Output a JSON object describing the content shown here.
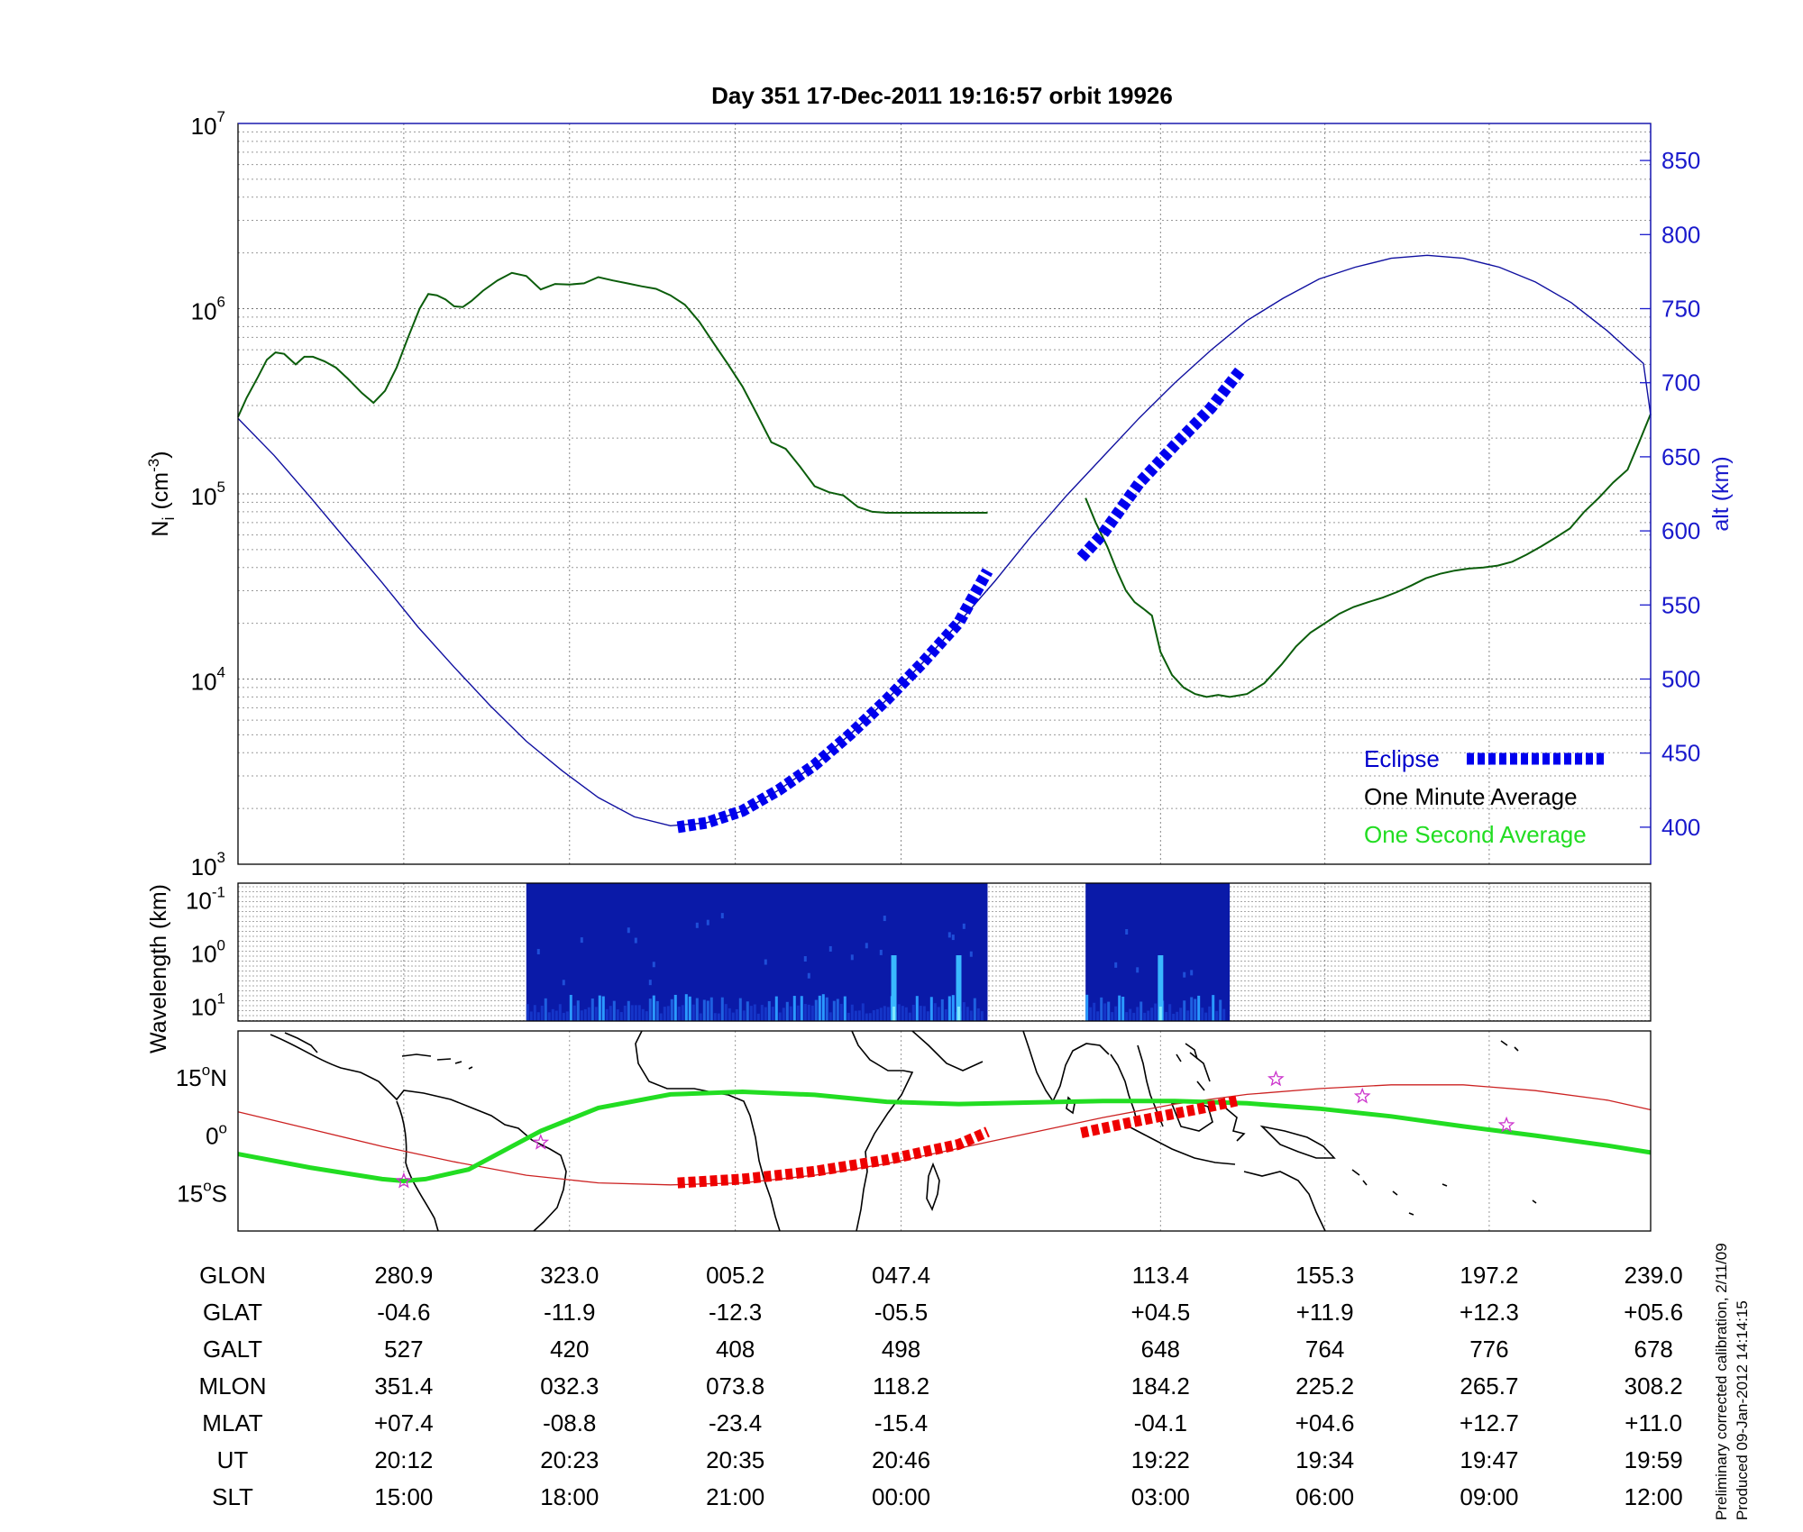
{
  "title": "Day 351  17-Dec-2011 19:16:57   orbit 19926",
  "footnote": {
    "line1": "Preliminary corrected calibration, 2/11/09",
    "line2": "Produced 09-Jan-2012 14:14:15"
  },
  "colors": {
    "density": "#0b5d0b",
    "altitude": "#1010a0",
    "eclipse": "#0000ee",
    "track": "#22dd22",
    "magnetic_equator": "#cc2222",
    "eclipse_map": "#ee0000",
    "legend_eclipse": "#0000cc",
    "legend_one_second": "#22dd22",
    "star": "#cc33cc"
  },
  "chart_data": [
    {
      "type": "line",
      "ylabel": "N",
      "ylabel_sub": "i",
      "ylabel_unit": "(cm",
      "ylabel_exp": "-3",
      "ylabel_close": ")",
      "yscale": "log",
      "ylim": [
        1000,
        10000000
      ],
      "yticks": [
        {
          "base": "10",
          "exp": "3",
          "value": 1000
        },
        {
          "base": "10",
          "exp": "4",
          "value": 10000
        },
        {
          "base": "10",
          "exp": "5",
          "value": 100000
        },
        {
          "base": "10",
          "exp": "6",
          "value": 1000000
        },
        {
          "base": "10",
          "exp": "7",
          "value": 10000000
        }
      ],
      "y2label": "alt (km)",
      "y2lim": [
        375,
        875
      ],
      "y2ticks": [
        "400",
        "450",
        "500",
        "550",
        "600",
        "650",
        "700",
        "750",
        "800",
        "850"
      ],
      "x_frame": "orbit time, minutes from 19:16:57 (approx.)",
      "xlim": [
        0,
        98
      ],
      "grid": true,
      "legend": {
        "position": "bottom-right",
        "eclipse": "Eclipse",
        "one_minute": "One Minute Average",
        "one_second": "One Second Average"
      },
      "series": [
        {
          "name": "One Minute Average",
          "axis": "left",
          "segments": [
            {
              "x": [
                0.0,
                0.6,
                1.4,
                2.0,
                2.6,
                3.2,
                4.0,
                4.6,
                5.2,
                6.0,
                6.8,
                7.6,
                8.6,
                9.4,
                10.2,
                11.0,
                11.8,
                12.6,
                13.2,
                13.8,
                14.4,
                15.0,
                15.6,
                16.2,
                17.0,
                18.0,
                19.0,
                20.0,
                21.0,
                22.0,
                23.0,
                24.0,
                25.0,
                26.0,
                27.0,
                28.0,
                29.0,
                30.0,
                31.0,
                32.0,
                33.0,
                34.0,
                35.0,
                36.0,
                37.0,
                38.0,
                39.0,
                40.0,
                41.0,
                42.0,
                43.0,
                44.0,
                45.0,
                46.0,
                47.0,
                48.0,
                49.0,
                50.0,
                51.0,
                52.0
              ],
              "y": [
                260000,
                330000,
                430000,
                530000,
                580000,
                570000,
                500000,
                550000,
                550000,
                520000,
                480000,
                420000,
                350000,
                310000,
                360000,
                480000,
                700000,
                1000000,
                1200000,
                1180000,
                1120000,
                1030000,
                1020000,
                1100000,
                1250000,
                1420000,
                1560000,
                1500000,
                1270000,
                1360000,
                1350000,
                1370000,
                1480000,
                1420000,
                1370000,
                1320000,
                1280000,
                1180000,
                1050000,
                850000,
                650000,
                500000,
                380000,
                270000,
                190000,
                175000,
                140000,
                110000,
                102000,
                98000,
                85000,
                80000,
                79000,
                79000,
                79000,
                79000,
                79000,
                79000,
                79000,
                79000
              ]
            },
            {
              "x": [
                58.8,
                59.5,
                60.3,
                61.0,
                61.6,
                62.2,
                62.8,
                63.4,
                64.0,
                64.8,
                65.6,
                66.4,
                67.2,
                68.0,
                68.8,
                70.0,
                71.2,
                72.4,
                73.4,
                74.4,
                75.4,
                76.4,
                77.4,
                78.4,
                79.4,
                80.4,
                81.4,
                82.4,
                83.4,
                84.4,
                85.4,
                86.4,
                87.4,
                88.4,
                89.4,
                90.4,
                91.4,
                92.4,
                93.4,
                94.4,
                95.4,
                96.4,
                97.2,
                98.0
              ],
              "y": [
                95000,
                70000,
                52000,
                38000,
                30000,
                26000,
                24000,
                22000,
                14000,
                10500,
                9000,
                8300,
                8000,
                8200,
                8000,
                8300,
                9500,
                12000,
                15000,
                17800,
                20000,
                22500,
                24500,
                26000,
                27500,
                29500,
                32000,
                35000,
                37000,
                38500,
                39500,
                40000,
                41000,
                43000,
                47000,
                52000,
                58000,
                65000,
                80000,
                95000,
                115000,
                135000,
                190000,
                270000
              ]
            }
          ]
        },
        {
          "name": "Altitude",
          "axis": "right",
          "segments": [
            {
              "x": [
                0.0,
                2.5,
                5.0,
                7.5,
                10.0,
                12.5,
                15.0,
                17.5,
                20.0,
                22.5,
                25.0,
                27.5,
                30.0,
                32.5,
                35.0,
                37.5,
                40.0,
                42.5,
                45.0,
                47.5,
                50.0,
                52.5,
                55.0,
                57.5,
                60.0,
                62.5,
                65.0,
                67.5,
                70.0,
                72.5,
                75.0,
                77.5,
                80.0,
                82.5,
                85.0,
                87.5,
                90.0,
                92.5,
                95.0,
                97.5,
                98.0
              ],
              "y": [
                676,
                651,
                623,
                594,
                565,
                535,
                508,
                482,
                458,
                438,
                420,
                407,
                401,
                403,
                411,
                425,
                442,
                463,
                486,
                511,
                538,
                566,
                596,
                624,
                650,
                676,
                700,
                722,
                742,
                757,
                770,
                778,
                784,
                786,
                784,
                778,
                768,
                754,
                735,
                713,
                678
              ]
            }
          ]
        },
        {
          "name": "Eclipse",
          "axis": "right",
          "segments": [
            {
              "x": [
                30.5,
                32.5,
                35.0,
                37.5,
                40.0,
                42.5,
                45.0,
                47.5,
                50.0,
                52.0
              ],
              "y": [
                400,
                403,
                411,
                425,
                442,
                463,
                486,
                511,
                538,
                573
              ]
            },
            {
              "x": [
                58.5,
                60.0,
                62.5,
                65.0,
                67.5,
                69.5
              ],
              "y": [
                582,
                598,
                632,
                658,
                683,
                708
              ]
            }
          ]
        }
      ]
    },
    {
      "type": "heatmap",
      "ylabel": "Wavelength (km)",
      "yscale": "log",
      "yticks": [
        {
          "base": "10",
          "exp": "-1",
          "value": 0.1
        },
        {
          "base": "10",
          "exp": "0",
          "value": 1
        },
        {
          "base": "10",
          "exp": "1",
          "value": 10
        }
      ],
      "blocks_x": [
        [
          20.0,
          52.0
        ],
        [
          58.8,
          68.8
        ]
      ],
      "colormap": "jet"
    },
    {
      "type": "line",
      "yticks": [
        {
          "label": "15",
          "deg": "o",
          "hem": "N",
          "value": 15
        },
        {
          "label": "0",
          "deg": "o",
          "hem": "",
          "value": 0
        },
        {
          "label": "15",
          "deg": "o",
          "hem": "S",
          "value": -15
        }
      ],
      "ylim": [
        -25,
        27
      ],
      "series": [
        {
          "name": "Geographic track",
          "x": [
            0.0,
            5.0,
            10.0,
            11.5,
            13.0,
            16.0,
            19.0,
            21.0,
            25.0,
            30.0,
            35.0,
            40.0,
            45.0,
            50.0,
            55.0,
            60.0,
            65.0,
            70.0,
            75.0,
            80.0,
            85.0,
            90.0,
            95.0,
            98.0
          ],
          "y": [
            -5,
            -8.5,
            -11.5,
            -12,
            -11.5,
            -9,
            -3,
            1,
            7,
            10.5,
            11.2,
            10.4,
            8.6,
            8.0,
            8.4,
            8.8,
            8.8,
            8.2,
            6.8,
            4.8,
            2.2,
            -0.2,
            -2.8,
            -4.6
          ]
        },
        {
          "name": "Magnetic equator",
          "x": [
            0.0,
            5.0,
            10.0,
            15.0,
            20.0,
            25.0,
            30.0,
            35.0,
            40.0,
            45.0,
            50.0,
            55.0,
            60.0,
            65.0,
            70.0,
            75.0,
            80.0,
            85.0,
            90.0,
            95.0,
            98.0
          ],
          "y": [
            6,
            1.5,
            -3,
            -7,
            -10.5,
            -12.5,
            -13,
            -12.5,
            -10.5,
            -7.5,
            -3.5,
            0.5,
            4.5,
            8.0,
            10.5,
            12,
            13,
            13,
            11.5,
            9,
            6.5
          ]
        },
        {
          "name": "Eclipse",
          "segments": [
            {
              "x": [
                30.5,
                35.0,
                40.0,
                45.0,
                50.0,
                52.0
              ],
              "y": [
                -12.5,
                -11.5,
                -9.5,
                -6.5,
                -2.5,
                0.8
              ]
            },
            {
              "x": [
                58.5,
                61.0,
                64.0,
                67.0,
                69.5
              ],
              "y": [
                0.5,
                2.5,
                4.8,
                7.0,
                9.0
              ]
            }
          ]
        }
      ],
      "markers": [
        {
          "symbol": "star",
          "x": 11.5,
          "y": -12
        },
        {
          "symbol": "star",
          "x": 21.0,
          "y": -2
        },
        {
          "symbol": "star",
          "x": 72.0,
          "y": 14.5
        },
        {
          "symbol": "star",
          "x": 78.0,
          "y": 10
        },
        {
          "symbol": "star",
          "x": 88.0,
          "y": 2.5
        }
      ]
    }
  ],
  "ephemeris": {
    "labels": [
      "GLON",
      "GLAT",
      "GALT",
      "MLON",
      "MLAT",
      "UT",
      "SLT"
    ],
    "x": [
      11.5,
      23.0,
      34.5,
      46.0,
      64.0,
      75.4,
      86.8,
      98.2
    ],
    "columns": [
      [
        "280.9",
        "-04.6",
        "527",
        "351.4",
        "+07.4",
        "20:12",
        "15:00"
      ],
      [
        "323.0",
        "-11.9",
        "420",
        "032.3",
        "-08.8",
        "20:23",
        "18:00"
      ],
      [
        "005.2",
        "-12.3",
        "408",
        "073.8",
        "-23.4",
        "20:35",
        "21:00"
      ],
      [
        "047.4",
        "-05.5",
        "498",
        "118.2",
        "-15.4",
        "20:46",
        "00:00"
      ],
      [
        "113.4",
        "+04.5",
        "648",
        "184.2",
        "-04.1",
        "19:22",
        "03:00"
      ],
      [
        "155.3",
        "+11.9",
        "764",
        "225.2",
        "+04.6",
        "19:34",
        "06:00"
      ],
      [
        "197.2",
        "+12.3",
        "776",
        "265.7",
        "+12.7",
        "19:47",
        "09:00"
      ],
      [
        "239.0",
        "+05.6",
        "678",
        "308.2",
        "+11.0",
        "19:59",
        "12:00"
      ]
    ]
  }
}
